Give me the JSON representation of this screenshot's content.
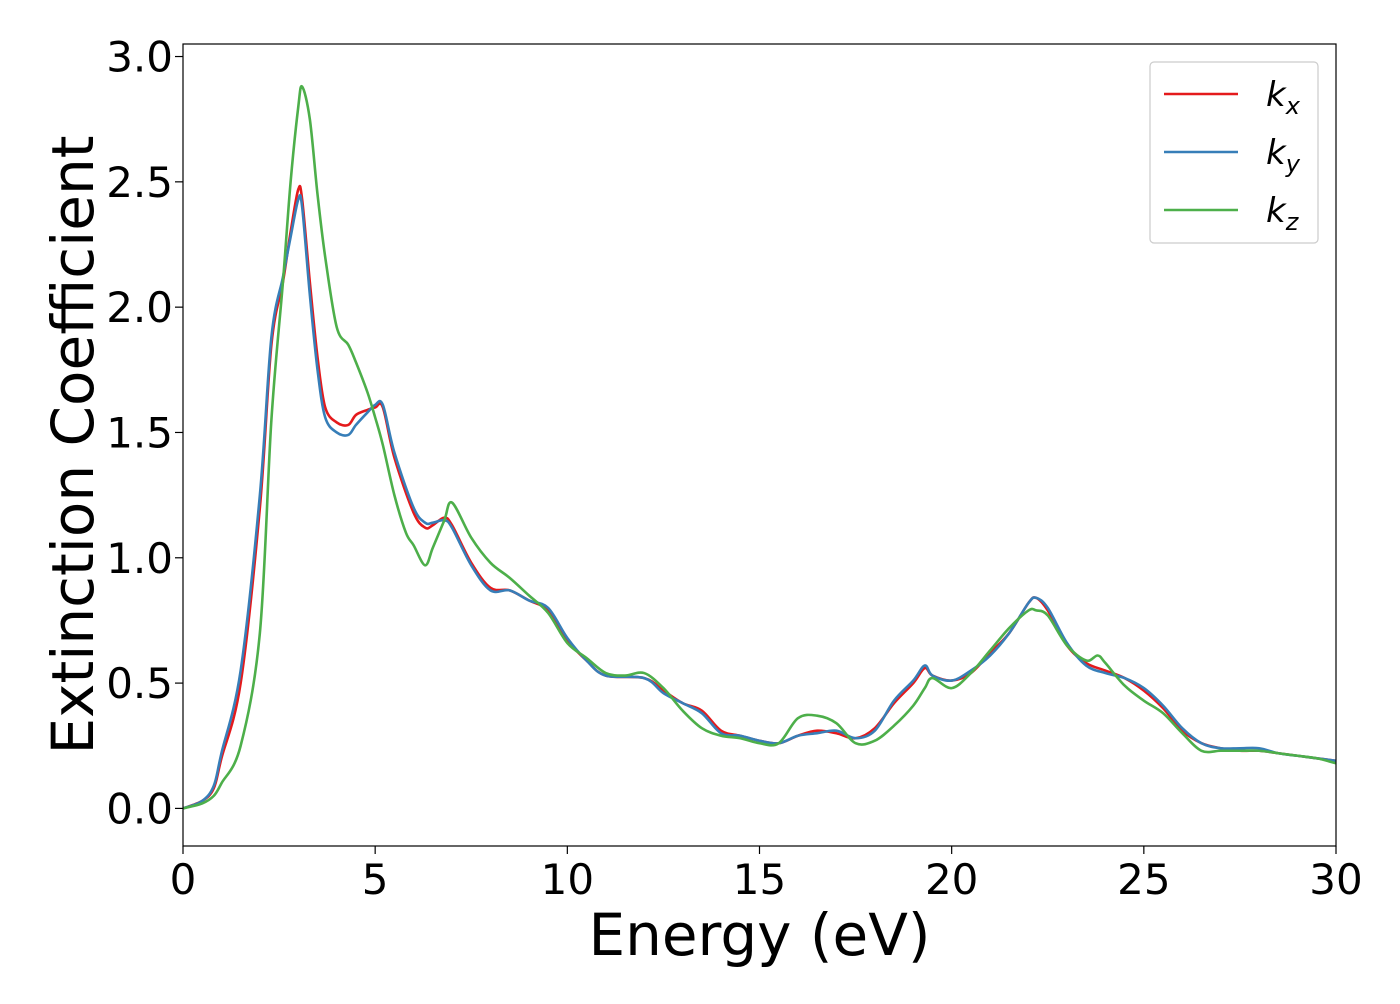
{
  "chart_data": {
    "type": "line",
    "title": "",
    "xlabel": "Energy (eV)",
    "ylabel": "Extinction Coefficient",
    "xlim": [
      0,
      30
    ],
    "ylim": [
      -0.15,
      3.05
    ],
    "xticks": [
      0,
      5,
      10,
      15,
      20,
      25,
      30
    ],
    "xtick_labels": [
      "0",
      "5",
      "10",
      "15",
      "20",
      "25",
      "30"
    ],
    "yticks": [
      0.0,
      0.5,
      1.0,
      1.5,
      2.0,
      2.5,
      3.0
    ],
    "ytick_labels": [
      "0.0",
      "0.5",
      "1.0",
      "1.5",
      "2.0",
      "2.5",
      "3.0"
    ],
    "grid": false,
    "legend_position": "top-right",
    "series": [
      {
        "name": "k_x",
        "label_base": "k",
        "label_sub": "x",
        "color": "#e41a1c",
        "x": [
          0,
          0.5,
          0.8,
          1.0,
          1.5,
          2.0,
          2.3,
          2.6,
          2.8,
          3.0,
          3.1,
          3.3,
          3.5,
          3.7,
          4.0,
          4.3,
          4.5,
          4.8,
          5.0,
          5.2,
          5.5,
          6.0,
          6.3,
          6.5,
          6.8,
          7.0,
          7.5,
          8.0,
          8.5,
          9.0,
          9.5,
          10.0,
          10.5,
          11.0,
          12.0,
          12.5,
          13.0,
          13.5,
          14.0,
          14.5,
          15.0,
          15.5,
          16.0,
          16.5,
          17.0,
          17.5,
          18.0,
          18.5,
          19.0,
          19.3,
          19.5,
          20.0,
          20.5,
          21.0,
          21.5,
          22.0,
          22.2,
          22.5,
          23.0,
          23.5,
          24.0,
          24.5,
          25.0,
          25.5,
          26.0,
          26.5,
          27.0,
          27.5,
          28.0,
          28.5,
          29.0,
          29.5,
          30.0
        ],
        "y": [
          0.0,
          0.03,
          0.08,
          0.2,
          0.5,
          1.2,
          1.85,
          2.1,
          2.3,
          2.47,
          2.43,
          2.1,
          1.8,
          1.6,
          1.54,
          1.53,
          1.57,
          1.59,
          1.6,
          1.6,
          1.4,
          1.18,
          1.12,
          1.13,
          1.16,
          1.13,
          0.98,
          0.88,
          0.87,
          0.83,
          0.79,
          0.67,
          0.59,
          0.53,
          0.52,
          0.47,
          0.42,
          0.39,
          0.31,
          0.29,
          0.27,
          0.26,
          0.29,
          0.31,
          0.3,
          0.28,
          0.32,
          0.42,
          0.5,
          0.56,
          0.53,
          0.51,
          0.54,
          0.62,
          0.7,
          0.82,
          0.84,
          0.79,
          0.65,
          0.58,
          0.55,
          0.52,
          0.47,
          0.4,
          0.31,
          0.26,
          0.24,
          0.23,
          0.23,
          0.22,
          0.21,
          0.2,
          0.19
        ]
      },
      {
        "name": "k_y",
        "label_base": "k",
        "label_sub": "y",
        "color": "#377eb8",
        "x": [
          0,
          0.5,
          0.8,
          1.0,
          1.5,
          2.0,
          2.3,
          2.6,
          2.8,
          3.0,
          3.1,
          3.3,
          3.5,
          3.7,
          4.0,
          4.3,
          4.5,
          4.8,
          5.0,
          5.2,
          5.5,
          6.0,
          6.3,
          6.5,
          6.8,
          7.0,
          7.5,
          8.0,
          8.5,
          9.0,
          9.5,
          10.0,
          10.5,
          11.0,
          12.0,
          12.5,
          13.0,
          13.5,
          14.0,
          14.5,
          15.0,
          15.5,
          16.0,
          16.5,
          17.0,
          17.5,
          18.0,
          18.5,
          19.0,
          19.3,
          19.5,
          20.0,
          20.5,
          21.0,
          21.5,
          22.0,
          22.2,
          22.5,
          23.0,
          23.5,
          24.0,
          24.5,
          25.0,
          25.5,
          26.0,
          26.5,
          27.0,
          27.5,
          28.0,
          28.5,
          29.0,
          29.5,
          30.0
        ],
        "y": [
          0.0,
          0.03,
          0.09,
          0.22,
          0.55,
          1.25,
          1.88,
          2.12,
          2.28,
          2.43,
          2.4,
          2.05,
          1.75,
          1.56,
          1.5,
          1.49,
          1.53,
          1.58,
          1.61,
          1.61,
          1.42,
          1.2,
          1.14,
          1.14,
          1.15,
          1.12,
          0.97,
          0.87,
          0.87,
          0.83,
          0.8,
          0.68,
          0.59,
          0.53,
          0.52,
          0.46,
          0.42,
          0.38,
          0.3,
          0.29,
          0.27,
          0.26,
          0.29,
          0.3,
          0.31,
          0.28,
          0.31,
          0.43,
          0.51,
          0.57,
          0.53,
          0.51,
          0.55,
          0.61,
          0.7,
          0.82,
          0.84,
          0.8,
          0.66,
          0.57,
          0.54,
          0.52,
          0.48,
          0.41,
          0.32,
          0.26,
          0.24,
          0.24,
          0.24,
          0.22,
          0.21,
          0.2,
          0.19
        ]
      },
      {
        "name": "k_z",
        "label_base": "k",
        "label_sub": "z",
        "color": "#4daf4a",
        "x": [
          0,
          0.5,
          0.8,
          1.0,
          1.5,
          2.0,
          2.3,
          2.6,
          2.8,
          3.0,
          3.1,
          3.3,
          3.5,
          3.7,
          4.0,
          4.3,
          4.5,
          4.8,
          5.0,
          5.2,
          5.5,
          5.8,
          6.0,
          6.3,
          6.5,
          6.8,
          7.0,
          7.5,
          8.0,
          8.5,
          9.0,
          9.5,
          10.0,
          10.5,
          11.0,
          11.5,
          12.0,
          12.5,
          13.0,
          13.5,
          14.0,
          14.5,
          15.0,
          15.5,
          16.0,
          16.5,
          17.0,
          17.5,
          18.0,
          18.5,
          19.0,
          19.3,
          19.5,
          20.0,
          20.5,
          21.0,
          21.5,
          22.0,
          22.2,
          22.5,
          23.0,
          23.5,
          23.8,
          24.0,
          24.5,
          25.0,
          25.5,
          26.0,
          26.5,
          27.0,
          27.5,
          28.0,
          28.5,
          29.0,
          29.5,
          30.0
        ],
        "y": [
          0.0,
          0.02,
          0.05,
          0.1,
          0.25,
          0.7,
          1.55,
          2.1,
          2.5,
          2.8,
          2.88,
          2.75,
          2.45,
          2.2,
          1.92,
          1.85,
          1.78,
          1.66,
          1.56,
          1.45,
          1.25,
          1.1,
          1.05,
          0.97,
          1.04,
          1.15,
          1.22,
          1.08,
          0.98,
          0.92,
          0.85,
          0.78,
          0.66,
          0.6,
          0.54,
          0.53,
          0.54,
          0.48,
          0.39,
          0.32,
          0.29,
          0.28,
          0.26,
          0.26,
          0.36,
          0.37,
          0.34,
          0.26,
          0.27,
          0.33,
          0.41,
          0.48,
          0.52,
          0.48,
          0.54,
          0.63,
          0.72,
          0.79,
          0.79,
          0.77,
          0.65,
          0.59,
          0.61,
          0.58,
          0.49,
          0.43,
          0.38,
          0.3,
          0.23,
          0.23,
          0.23,
          0.23,
          0.22,
          0.21,
          0.2,
          0.18
        ]
      }
    ]
  }
}
